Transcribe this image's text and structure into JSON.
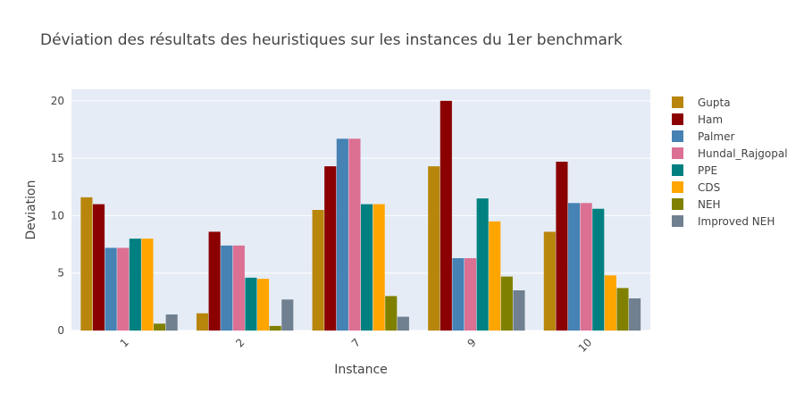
{
  "chart_data": {
    "type": "bar",
    "title": "Déviation des résultats des heuristiques sur les instances du 1er benchmark",
    "xlabel": "Instance",
    "ylabel": "Deviation",
    "ylim": [
      0,
      21
    ],
    "yticks": [
      0,
      5,
      10,
      15,
      20
    ],
    "categories": [
      "1",
      "2",
      "7",
      "9",
      "10"
    ],
    "grid": true,
    "legend_position": "right",
    "series": [
      {
        "name": "Gupta",
        "color": "#b8860b",
        "values": [
          11.6,
          1.5,
          10.5,
          14.3,
          8.6
        ]
      },
      {
        "name": "Ham",
        "color": "#8b0000",
        "values": [
          11.0,
          8.6,
          14.3,
          20.0,
          14.7
        ]
      },
      {
        "name": "Palmer",
        "color": "#4682b4",
        "values": [
          7.2,
          7.4,
          16.7,
          6.3,
          11.1
        ]
      },
      {
        "name": "Hundal_Rajgopal",
        "color": "#db7093",
        "values": [
          7.2,
          7.4,
          16.7,
          6.3,
          11.1
        ]
      },
      {
        "name": "PPE",
        "color": "#008080",
        "values": [
          8.0,
          4.6,
          11.0,
          11.5,
          10.6
        ]
      },
      {
        "name": "CDS",
        "color": "#ffa500",
        "values": [
          8.0,
          4.5,
          11.0,
          9.5,
          4.8
        ]
      },
      {
        "name": "NEH",
        "color": "#808000",
        "values": [
          0.6,
          0.4,
          3.0,
          4.7,
          3.7
        ]
      },
      {
        "name": "Improved NEH",
        "color": "#708090",
        "values": [
          1.4,
          2.7,
          1.2,
          3.5,
          2.8
        ]
      }
    ]
  }
}
